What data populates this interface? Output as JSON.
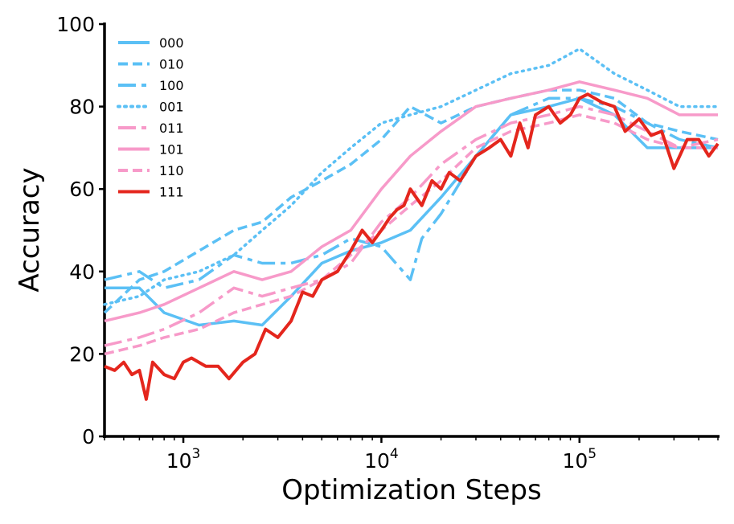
{
  "chart_data": {
    "type": "line",
    "title": "",
    "xlabel": "Optimization Steps",
    "ylabel": "Accuracy",
    "xscale": "log",
    "xlim": [
      400,
      500000
    ],
    "ylim": [
      0,
      100
    ],
    "yticks": [
      0,
      20,
      40,
      60,
      80,
      100
    ],
    "ytick_labels": [
      "0",
      "20",
      "40",
      "60",
      "80",
      "100"
    ],
    "xticks": [
      {
        "value": 1000,
        "base": "10",
        "exp": "3"
      },
      {
        "value": 10000,
        "base": "10",
        "exp": "4"
      },
      {
        "value": 100000,
        "base": "10",
        "exp": "5"
      }
    ],
    "legend": {
      "location": "top-left"
    },
    "colors": {
      "blue": "#5bc0f5",
      "pink": "#f79ac9",
      "red": "#e4261d"
    },
    "series": [
      {
        "name": "000",
        "color": "#5bc0f5",
        "dash": "solid",
        "x": [
          400,
          600,
          800,
          1200,
          1800,
          2500,
          3500,
          5000,
          7000,
          10000,
          14000,
          20000,
          30000,
          45000,
          70000,
          100000,
          150000,
          220000,
          320000,
          500000
        ],
        "y": [
          36,
          36,
          30,
          27,
          28,
          27,
          34,
          42,
          45,
          47,
          50,
          58,
          68,
          78,
          80,
          82,
          78,
          70,
          70,
          70
        ]
      },
      {
        "name": "010",
        "color": "#5bc0f5",
        "dash": "dashed",
        "x": [
          400,
          600,
          800,
          1200,
          1800,
          2500,
          3500,
          5000,
          7000,
          10000,
          14000,
          20000,
          30000,
          45000,
          70000,
          100000,
          150000,
          220000,
          320000,
          500000
        ],
        "y": [
          30,
          38,
          40,
          45,
          50,
          52,
          58,
          62,
          66,
          72,
          80,
          76,
          80,
          82,
          84,
          84,
          82,
          76,
          74,
          72
        ]
      },
      {
        "name": "100",
        "color": "#5bc0f5",
        "dash": "longdash",
        "x": [
          400,
          600,
          800,
          1200,
          1800,
          2500,
          3500,
          5000,
          7000,
          10000,
          14000,
          16000,
          20000,
          30000,
          45000,
          70000,
          100000,
          150000,
          220000,
          320000,
          500000
        ],
        "y": [
          38,
          40,
          36,
          38,
          44,
          42,
          42,
          44,
          48,
          46,
          38,
          48,
          54,
          68,
          78,
          82,
          82,
          80,
          76,
          72,
          70
        ]
      },
      {
        "name": "001",
        "color": "#5bc0f5",
        "dash": "dotted",
        "x": [
          400,
          600,
          800,
          1200,
          1800,
          2500,
          3500,
          5000,
          7000,
          10000,
          14000,
          20000,
          30000,
          45000,
          70000,
          100000,
          150000,
          220000,
          320000,
          500000
        ],
        "y": [
          32,
          34,
          38,
          40,
          44,
          50,
          56,
          64,
          70,
          76,
          78,
          80,
          84,
          88,
          90,
          94,
          88,
          84,
          80,
          80
        ]
      },
      {
        "name": "011",
        "color": "#f79ac9",
        "dash": "longdash",
        "x": [
          400,
          600,
          800,
          1200,
          1800,
          2500,
          3500,
          5000,
          7000,
          10000,
          14000,
          20000,
          30000,
          45000,
          70000,
          100000,
          150000,
          220000,
          320000,
          500000
        ],
        "y": [
          22,
          24,
          26,
          30,
          36,
          34,
          36,
          38,
          42,
          52,
          58,
          66,
          72,
          76,
          78,
          80,
          78,
          74,
          70,
          72
        ]
      },
      {
        "name": "101",
        "color": "#f79ac9",
        "dash": "solid",
        "x": [
          400,
          600,
          800,
          1200,
          1800,
          2500,
          3500,
          5000,
          7000,
          10000,
          14000,
          20000,
          30000,
          45000,
          70000,
          100000,
          150000,
          220000,
          320000,
          500000
        ],
        "y": [
          28,
          30,
          32,
          36,
          40,
          38,
          40,
          46,
          50,
          60,
          68,
          74,
          80,
          82,
          84,
          86,
          84,
          82,
          78,
          78
        ]
      },
      {
        "name": "110",
        "color": "#f79ac9",
        "dash": "dashed",
        "x": [
          400,
          600,
          800,
          1200,
          1800,
          2500,
          3500,
          5000,
          7000,
          10000,
          14000,
          20000,
          30000,
          45000,
          70000,
          100000,
          150000,
          220000,
          320000,
          500000
        ],
        "y": [
          20,
          22,
          24,
          26,
          30,
          32,
          34,
          38,
          44,
          50,
          56,
          62,
          70,
          74,
          76,
          78,
          76,
          72,
          70,
          70
        ]
      },
      {
        "name": "111",
        "color": "#e4261d",
        "dash": "solid",
        "x": [
          400,
          450,
          500,
          550,
          600,
          650,
          700,
          800,
          900,
          1000,
          1100,
          1300,
          1500,
          1700,
          2000,
          2300,
          2600,
          3000,
          3500,
          4000,
          4500,
          5000,
          6000,
          7000,
          8000,
          9000,
          10000,
          11000,
          12000,
          13000,
          14000,
          16000,
          18000,
          20000,
          22000,
          25000,
          30000,
          35000,
          40000,
          45000,
          50000,
          55000,
          60000,
          70000,
          80000,
          90000,
          100000,
          110000,
          130000,
          150000,
          170000,
          200000,
          230000,
          260000,
          300000,
          350000,
          400000,
          450000,
          500000
        ],
        "y": [
          17,
          16,
          18,
          15,
          16,
          9,
          18,
          15,
          14,
          18,
          19,
          17,
          17,
          14,
          18,
          20,
          26,
          24,
          28,
          35,
          34,
          38,
          40,
          45,
          50,
          47,
          50,
          53,
          55,
          56,
          60,
          56,
          62,
          60,
          64,
          62,
          68,
          70,
          72,
          68,
          76,
          70,
          78,
          80,
          76,
          78,
          82,
          83,
          81,
          80,
          74,
          77,
          73,
          74,
          65,
          72,
          72,
          68,
          71
        ]
      }
    ]
  }
}
